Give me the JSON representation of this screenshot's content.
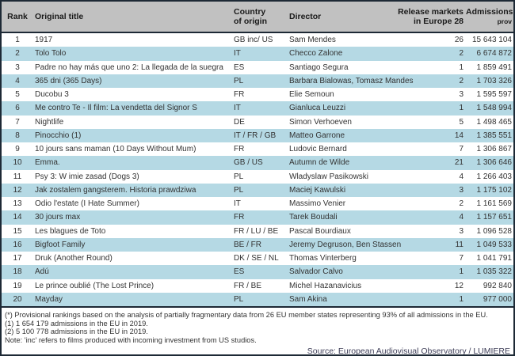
{
  "table": {
    "columns": {
      "rank": "Rank",
      "title": "Original title",
      "country_line1": "Country",
      "country_line2": "of origin",
      "director": "Director",
      "markets_line1": "Release markets",
      "markets_line2": "in Europe 28",
      "admissions_line1": "Admissions",
      "admissions_line2": "prov"
    },
    "rows": [
      {
        "rank": "1",
        "title": "1917",
        "country": "GB inc/ US",
        "director": "Sam Mendes",
        "markets": "26",
        "admissions": "15 643 104"
      },
      {
        "rank": "2",
        "title": "Tolo Tolo",
        "country": "IT",
        "director": "Checco Zalone",
        "markets": "2",
        "admissions": "6 674 872"
      },
      {
        "rank": "3",
        "title": "Padre no hay más que uno 2: La llegada de la suegra",
        "country": "ES",
        "director": "Santiago Segura",
        "markets": "1",
        "admissions": "1 859 491"
      },
      {
        "rank": "4",
        "title": "365 dni (365 Days)",
        "country": "PL",
        "director": "Barbara Bialowas, Tomasz Mandes",
        "markets": "2",
        "admissions": "1 703 326"
      },
      {
        "rank": "5",
        "title": "Ducobu 3",
        "country": "FR",
        "director": "Elie Semoun",
        "markets": "3",
        "admissions": "1 595 597"
      },
      {
        "rank": "6",
        "title": "Me contro Te - Il film: La vendetta del Signor S",
        "country": "IT",
        "director": "Gianluca Leuzzi",
        "markets": "1",
        "admissions": "1 548 994"
      },
      {
        "rank": "7",
        "title": "Nightlife",
        "country": "DE",
        "director": "Simon Verhoeven",
        "markets": "5",
        "admissions": "1 498 465"
      },
      {
        "rank": "8",
        "title": "Pinocchio (1)",
        "country": "IT / FR / GB",
        "director": "Matteo Garrone",
        "markets": "14",
        "admissions": "1 385 551"
      },
      {
        "rank": "9",
        "title": "10 jours sans maman (10 Days Without Mum)",
        "country": "FR",
        "director": "Ludovic Bernard",
        "markets": "7",
        "admissions": "1 306 867"
      },
      {
        "rank": "10",
        "title": "Emma.",
        "country": "GB / US",
        "director": "Autumn de Wilde",
        "markets": "21",
        "admissions": "1 306 646"
      },
      {
        "rank": "11",
        "title": "Psy 3: W imie zasad (Dogs 3)",
        "country": "PL",
        "director": "Wladyslaw Pasikowski",
        "markets": "4",
        "admissions": "1 266 403"
      },
      {
        "rank": "12",
        "title": "Jak zostalem gangsterem. Historia prawdziwa",
        "country": "PL",
        "director": "Maciej Kawulski",
        "markets": "3",
        "admissions": "1 175 102"
      },
      {
        "rank": "13",
        "title": "Odio l'estate (I Hate Summer)",
        "country": "IT",
        "director": "Massimo Venier",
        "markets": "2",
        "admissions": "1 161 569"
      },
      {
        "rank": "14",
        "title": "30 jours max",
        "country": "FR",
        "director": "Tarek Boudali",
        "markets": "4",
        "admissions": "1 157 651"
      },
      {
        "rank": "15",
        "title": "Les blagues de Toto",
        "country": "FR / LU / BE",
        "director": "Pascal Bourdiaux",
        "markets": "3",
        "admissions": "1 096 528"
      },
      {
        "rank": "16",
        "title": "Bigfoot Family",
        "country": "BE / FR",
        "director": "Jeremy Degruson, Ben Stassen",
        "markets": "11",
        "admissions": "1 049 533"
      },
      {
        "rank": "17",
        "title": "Druk (Another Round)",
        "country": "DK / SE / NL",
        "director": "Thomas Vinterberg",
        "markets": "7",
        "admissions": "1 041 791"
      },
      {
        "rank": "18",
        "title": "Adú",
        "country": "ES",
        "director": "Salvador Calvo",
        "markets": "1",
        "admissions": "1 035 322"
      },
      {
        "rank": "19",
        "title": "Le prince oublié (The Lost Prince)",
        "country": "FR / BE",
        "director": "Michel Hazanavicius",
        "markets": "12",
        "admissions": "992 840"
      },
      {
        "rank": "20",
        "title": "Mayday",
        "country": "PL",
        "director": "Sam Akina",
        "markets": "1",
        "admissions": "977 000"
      }
    ]
  },
  "footnotes": [
    "(*) Provisional rankings based on the analysis of partially fragmentary data from 26 EU member states representing 93% of all admissions in the EU.",
    "(1) 1 654 179  admissions in the EU in 2019.",
    "(2) 5 100 778 admissions in the EU in 2019.",
    "Note: 'inc' refers to films produced with incoming investment from US studios."
  ],
  "source": "Source: European Audiovisual Observatory / LUMIERE",
  "colors": {
    "header_bg": "#c1c1c1",
    "row_alt_bg": "#b5d9e4",
    "border": "#1d2935",
    "source_text": "#3e3e58"
  }
}
